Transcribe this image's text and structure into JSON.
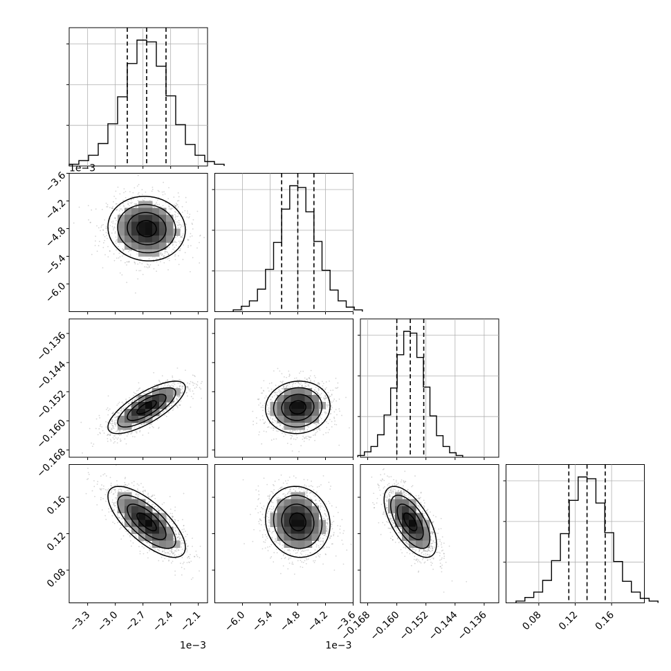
{
  "chart_data": {
    "type": "corner",
    "colors": {
      "hist": "#000000",
      "scatter": "#888888",
      "grid": "#b0b0b0",
      "quantile": "#000000"
    },
    "params": [
      {
        "range": [
          -0.0035,
          -0.002
        ],
        "ticks": [
          -0.0033,
          -0.003,
          -0.0027,
          -0.0024,
          -0.0021
        ],
        "tick_labels": [
          "−3.3",
          "−3.0",
          "−2.7",
          "−2.4",
          "−2.1"
        ],
        "offset": "1e−3",
        "mean": -0.00266,
        "sigma": 0.00021,
        "quantiles": [
          -0.00287,
          -0.00266,
          -0.00245
        ]
      },
      {
        "range": [
          -0.0066,
          -0.0036
        ],
        "ticks": [
          -0.006,
          -0.0054,
          -0.0048,
          -0.0042,
          -0.0036
        ],
        "tick_labels": [
          "−6.0",
          "−5.4",
          "−4.8",
          "−4.2",
          "−3.6"
        ],
        "offset": "1e−3",
        "mean": -0.0048,
        "sigma": 0.00035,
        "quantiles": [
          -0.00515,
          -0.0048,
          -0.00445
        ]
      },
      {
        "range": [
          -0.17,
          -0.132
        ],
        "ticks": [
          -0.168,
          -0.16,
          -0.152,
          -0.144,
          -0.136
        ],
        "tick_labels": [
          "−0.168",
          "−0.160",
          "−0.152",
          "−0.144",
          "−0.136"
        ],
        "offset": "",
        "mean": -0.1563,
        "sigma": 0.0036,
        "quantiles": [
          -0.16,
          -0.1563,
          -0.1526
        ]
      },
      {
        "range": [
          0.044,
          0.196
        ],
        "ticks": [
          0.08,
          0.12,
          0.16
        ],
        "tick_labels": [
          "0.08",
          "0.12",
          "0.16"
        ],
        "offset": "",
        "mean": 0.133,
        "sigma": 0.0195,
        "quantiles": [
          0.113,
          0.133,
          0.153
        ]
      }
    ],
    "correlations": {
      "1-0": -0.05,
      "2-0": 0.75,
      "2-1": 0.05,
      "3-0": -0.72,
      "3-1": -0.08,
      "3-2": -0.62
    },
    "histogram": {
      "counts": [
        2,
        6,
        12,
        25,
        47,
        77,
        114,
        140,
        138,
        111,
        78,
        46,
        24,
        12,
        5,
        2
      ]
    },
    "contour_levels": [
      0.118,
      0.393,
      0.675,
      0.865
    ],
    "density_bins": 20
  }
}
